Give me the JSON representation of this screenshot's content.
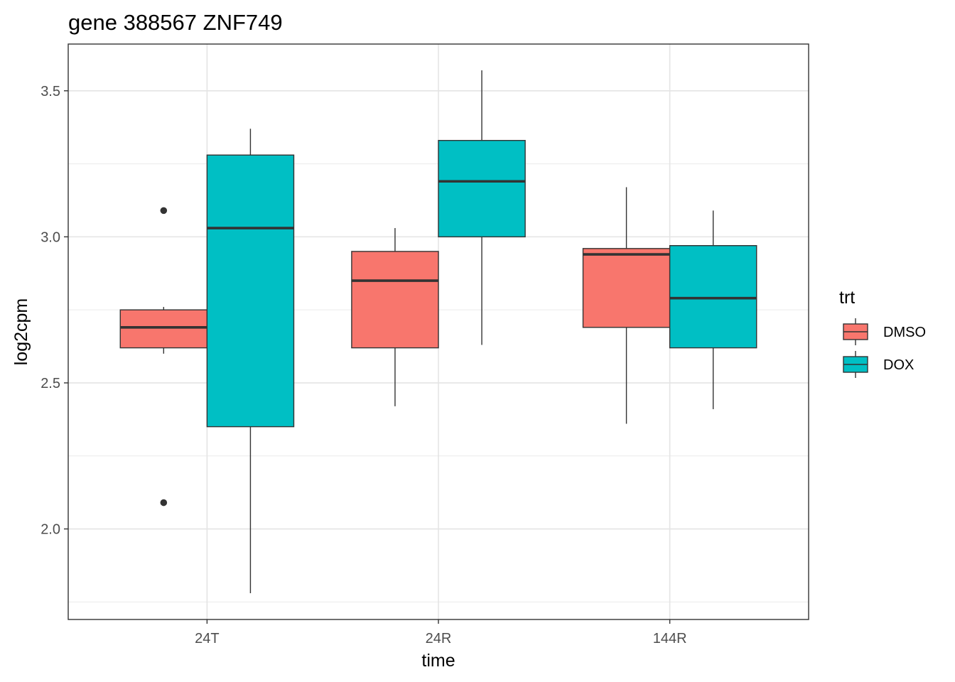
{
  "chart_data": {
    "type": "boxplot",
    "title": "gene 388567 ZNF749",
    "xlabel": "time",
    "ylabel": "log2cpm",
    "categories": [
      "24T",
      "24R",
      "144R"
    ],
    "ylim": [
      1.69,
      3.66
    ],
    "yticks": [
      2.0,
      2.5,
      3.0,
      3.5
    ],
    "ytick_labels": [
      "2.0",
      "2.5",
      "3.0",
      "3.5"
    ],
    "grid": true,
    "legend": {
      "title": "trt",
      "position": "right"
    },
    "series": [
      {
        "name": "DMSO",
        "color": "#F8766D",
        "boxes": [
          {
            "category": "24T",
            "whisker_low": 2.6,
            "q1": 2.62,
            "median": 2.69,
            "q3": 2.75,
            "whisker_high": 2.76,
            "outliers": [
              3.09,
              2.09
            ]
          },
          {
            "category": "24R",
            "whisker_low": 2.42,
            "q1": 2.62,
            "median": 2.85,
            "q3": 2.95,
            "whisker_high": 3.03,
            "outliers": []
          },
          {
            "category": "144R",
            "whisker_low": 2.36,
            "q1": 2.69,
            "median": 2.94,
            "q3": 2.96,
            "whisker_high": 3.17,
            "outliers": []
          }
        ]
      },
      {
        "name": "DOX",
        "color": "#00BFC4",
        "boxes": [
          {
            "category": "24T",
            "whisker_low": 1.78,
            "q1": 2.35,
            "median": 3.03,
            "q3": 3.28,
            "whisker_high": 3.37,
            "outliers": []
          },
          {
            "category": "24R",
            "whisker_low": 2.63,
            "q1": 3.0,
            "median": 3.19,
            "q3": 3.33,
            "whisker_high": 3.57,
            "outliers": []
          },
          {
            "category": "144R",
            "whisker_low": 2.41,
            "q1": 2.62,
            "median": 2.79,
            "q3": 2.97,
            "whisker_high": 3.09,
            "outliers": []
          }
        ]
      }
    ]
  }
}
